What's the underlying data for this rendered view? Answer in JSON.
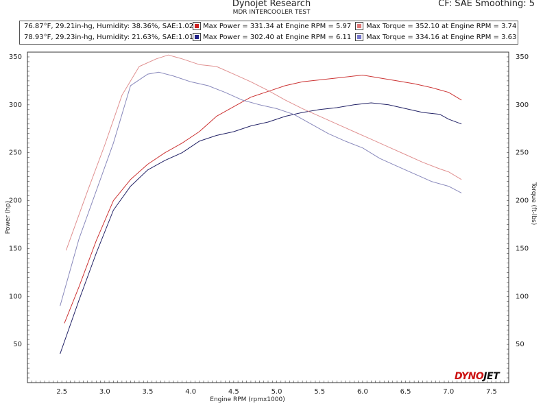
{
  "header": {
    "title": "Dynojet Research",
    "subtitle": "MDR INTERCOOLER TEST",
    "cf_label": "CF: SAE Smoothing: 5"
  },
  "legend": {
    "rows": [
      {
        "conditions": "76.87°F, 29.21in-hg, Humidity: 38.36%, SAE:1.02",
        "power_label": "Max Power = 331.34 at Engine RPM = 5.97",
        "torque_label": "Max Torque = 352.10 at Engine RPM = 3.74",
        "power_color": "#cc2222",
        "torque_color": "#e07777"
      },
      {
        "conditions": "78.93°F, 29.23in-hg, Humidity: 21.63%, SAE:1.01",
        "power_label": "Max Power = 302.40 at Engine RPM = 6.11",
        "torque_label": "Max Torque = 334.16 at Engine RPM = 3.63",
        "power_color": "#222288",
        "torque_color": "#7777cc"
      }
    ]
  },
  "logo": {
    "part1": "DYNO",
    "part2": "JET"
  },
  "chart_data": {
    "type": "line",
    "xlabel": "Engine RPM (rpmx1000)",
    "ylabel": "Power (hp)",
    "y2label": "Torque (ft-lbs)",
    "xlim": [
      2.1,
      7.7
    ],
    "ylim": [
      10,
      355
    ],
    "xticks": [
      2.5,
      3.0,
      3.5,
      4.0,
      4.5,
      5.0,
      5.5,
      6.0,
      6.5,
      7.0,
      7.5
    ],
    "yticks": [
      50,
      100,
      150,
      200,
      250,
      300,
      350
    ],
    "y2ticks": [
      50,
      100,
      150,
      200,
      250,
      300,
      350
    ],
    "grid": true,
    "series": [
      {
        "color": "#cc3333",
        "x": [
          2.53,
          2.7,
          2.9,
          3.1,
          3.3,
          3.5,
          3.7,
          3.9,
          4.1,
          4.3,
          4.5,
          4.7,
          4.9,
          5.1,
          5.3,
          5.5,
          5.7,
          5.9,
          6.0,
          6.2,
          6.4,
          6.6,
          6.8,
          7.0,
          7.15
        ],
        "y": [
          72,
          110,
          158,
          200,
          222,
          238,
          250,
          260,
          272,
          288,
          298,
          308,
          314,
          320,
          324,
          326,
          328,
          330,
          331,
          328,
          325,
          322,
          318,
          313,
          305
        ]
      },
      {
        "color": "#222266",
        "x": [
          2.48,
          2.7,
          2.9,
          3.1,
          3.3,
          3.5,
          3.7,
          3.9,
          4.1,
          4.3,
          4.5,
          4.7,
          4.9,
          5.1,
          5.3,
          5.5,
          5.7,
          5.9,
          6.1,
          6.3,
          6.5,
          6.7,
          6.9,
          7.0,
          7.15
        ],
        "y": [
          40,
          96,
          145,
          190,
          215,
          232,
          242,
          250,
          262,
          268,
          272,
          278,
          282,
          288,
          292,
          295,
          297,
          300,
          302,
          300,
          296,
          292,
          290,
          285,
          280
        ]
      },
      {
        "color": "#e09090",
        "x": [
          2.55,
          2.8,
          3.0,
          3.2,
          3.4,
          3.6,
          3.74,
          3.9,
          4.1,
          4.3,
          4.5,
          4.7,
          4.9,
          5.1,
          5.3,
          5.5,
          5.7,
          5.9,
          6.1,
          6.3,
          6.5,
          6.7,
          6.9,
          7.0,
          7.15
        ],
        "y": [
          148,
          210,
          258,
          310,
          340,
          348,
          352,
          348,
          342,
          340,
          332,
          324,
          315,
          305,
          296,
          288,
          280,
          272,
          264,
          256,
          248,
          240,
          233,
          230,
          222
        ]
      },
      {
        "color": "#8888bb",
        "x": [
          2.48,
          2.7,
          2.9,
          3.1,
          3.3,
          3.5,
          3.63,
          3.8,
          4.0,
          4.2,
          4.4,
          4.6,
          4.8,
          5.0,
          5.2,
          5.4,
          5.6,
          5.8,
          6.0,
          6.2,
          6.4,
          6.6,
          6.8,
          7.0,
          7.15
        ],
        "y": [
          90,
          160,
          210,
          260,
          320,
          332,
          334,
          330,
          324,
          320,
          313,
          305,
          300,
          296,
          290,
          280,
          270,
          262,
          255,
          244,
          236,
          228,
          220,
          215,
          208
        ]
      }
    ]
  }
}
